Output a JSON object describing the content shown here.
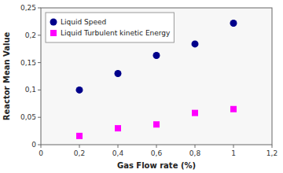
{
  "chart_data": {
    "type": "scatter",
    "x_label": "Gas Flow rate (%)",
    "y_label": "Reactor Mean Value",
    "series": [
      {
        "name": "Liquid Speed",
        "color": "#00008B",
        "marker": "circle",
        "x": [
          0.2,
          0.4,
          0.6,
          0.8,
          1.0
        ],
        "values": [
          0.1,
          0.13,
          0.163,
          0.184,
          0.222
        ]
      },
      {
        "name": "Liquid Turbulent kinetic Energy",
        "color": "#FF00FF",
        "marker": "square",
        "x": [
          0.2,
          0.4,
          0.6,
          0.8,
          1.0
        ],
        "values": [
          0.016,
          0.03,
          0.037,
          0.058,
          0.065
        ]
      }
    ],
    "xlim": [
      0,
      1.2
    ],
    "ylim": [
      0,
      0.25
    ],
    "xticks": [
      0,
      {
        "value": 0.2,
        "label": "0,2"
      },
      {
        "value": 0.4,
        "label": "0,4"
      },
      {
        "value": 0.6,
        "label": "0,6"
      },
      {
        "value": 0.8,
        "label": "0,8"
      },
      1,
      {
        "value": 1.2,
        "label": "1,2"
      }
    ],
    "yticks": [
      0,
      {
        "value": 0.05,
        "label": "0,05"
      },
      {
        "value": 0.1,
        "label": "0,1"
      },
      {
        "value": 0.15,
        "label": "0,15"
      },
      {
        "value": 0.2,
        "label": "0,2"
      },
      {
        "value": 0.25,
        "label": "0,25"
      }
    ],
    "grid": false,
    "legend": "upper left"
  }
}
